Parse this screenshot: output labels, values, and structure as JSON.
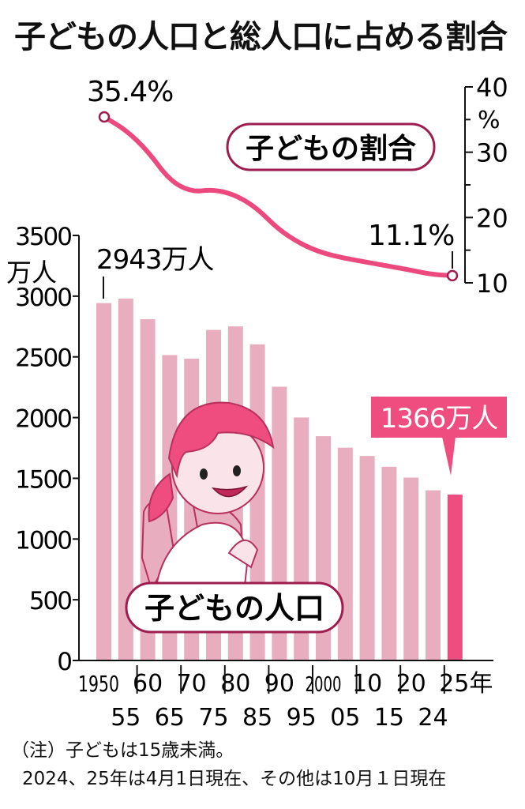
{
  "title": "子どもの人口と総人口に占める割合",
  "colors": {
    "bar": "#e8aec0",
    "bar_highlight": "#ef4d7f",
    "line": "#ec4a7e",
    "label_border": "#9e1d4f",
    "axis": "#111111"
  },
  "notes": {
    "line1": "（注）子どもは15歳未満。",
    "line2": "2024、25年は4月1日現在、その他は10月１日現在"
  },
  "chart_data": [
    {
      "type": "bar",
      "series": [
        {
          "name": "子どもの人口",
          "values": [
            2943,
            2980,
            2810,
            2515,
            2485,
            2722,
            2751,
            2603,
            2254,
            2001,
            1847,
            1752,
            1684,
            1595,
            1506,
            1401,
            1366
          ]
        }
      ],
      "categories": [
        "1950",
        "55",
        "60",
        "65",
        "70",
        "75",
        "80",
        "85",
        "90",
        "95",
        "2000",
        "05",
        "10",
        "15",
        "20",
        "24",
        "25年"
      ],
      "ylim": [
        0,
        3500
      ],
      "yticks": [
        "0",
        "500",
        "1000",
        "1500",
        "2000",
        "2500",
        "3000",
        "3500"
      ],
      "yunit": "万人",
      "annotations": {
        "first": "2943万人",
        "last": "1366万人"
      }
    },
    {
      "type": "line",
      "series": [
        {
          "name": "子どもの割合",
          "values": [
            35.4,
            33.4,
            30.2,
            25.7,
            23.9,
            24.3,
            23.5,
            21.5,
            18.2,
            16.0,
            14.6,
            13.8,
            13.2,
            12.6,
            12.0,
            11.3,
            11.1
          ]
        }
      ],
      "categories": [
        "1950",
        "55",
        "60",
        "65",
        "70",
        "75",
        "80",
        "85",
        "90",
        "95",
        "2000",
        "05",
        "10",
        "15",
        "20",
        "24",
        "25年"
      ],
      "ylim": [
        10,
        40
      ],
      "yticks": [
        "10",
        "20",
        "30",
        "40"
      ],
      "yunit": "%",
      "annotations": {
        "first": "35.4%",
        "last": "11.1%"
      }
    }
  ],
  "x_axis": {
    "top_row": [
      "1950",
      "60",
      "70",
      "80",
      "90",
      "2000",
      "10",
      "20",
      "25年"
    ],
    "bottom_row": [
      "55",
      "65",
      "75",
      "85",
      "95",
      "05",
      "15",
      "24"
    ]
  }
}
